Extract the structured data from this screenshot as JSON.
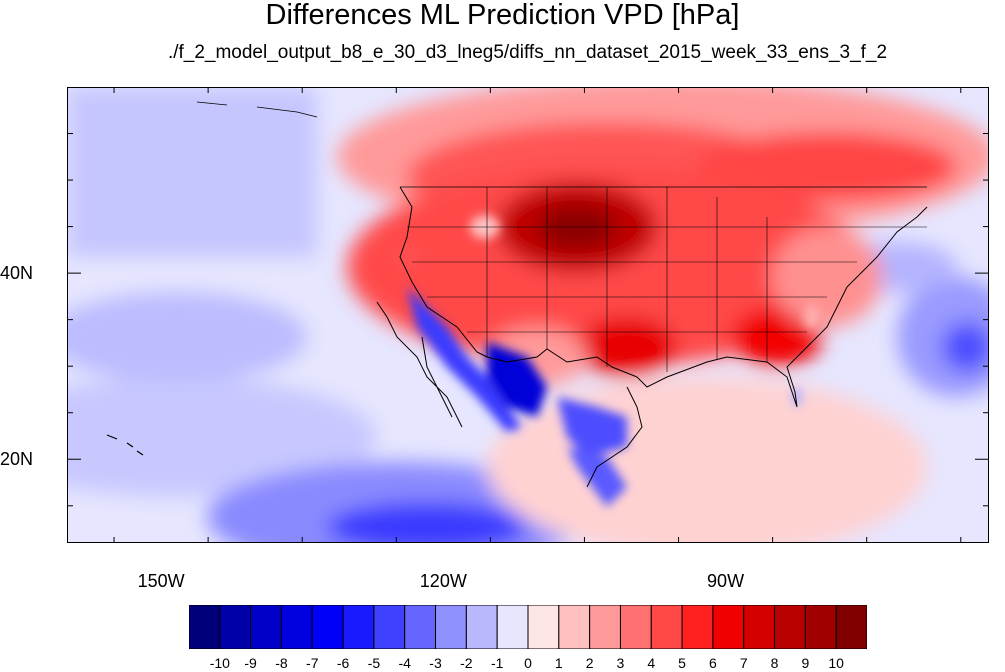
{
  "title": "Differences ML Prediction VPD [hPa]",
  "subtitle": "./f_2_model_output_b8_e_30_d3_lneg5/diffs_nn_dataset_2015_week_33_ens_3_f_2",
  "map": {
    "lon_range": [
      -160,
      -62
    ],
    "lat_range": [
      11,
      60
    ],
    "lat_labels": [
      {
        "lat": 40,
        "label": "40N"
      },
      {
        "lat": 20,
        "label": "20N"
      }
    ],
    "lon_labels": [
      {
        "lon": -150,
        "label": "150W"
      },
      {
        "lon": -120,
        "label": "120W"
      },
      {
        "lon": -90,
        "label": "90W"
      }
    ]
  },
  "colorbar": {
    "labels": [
      "-10",
      "-9",
      "-8",
      "-7",
      "-6",
      "-5",
      "-4",
      "-3",
      "-2",
      "-1",
      "0",
      "1",
      "2",
      "3",
      "4",
      "5",
      "6",
      "7",
      "8",
      "9",
      "10"
    ],
    "colors": [
      "#00007a",
      "#0000a8",
      "#0000c8",
      "#0000e0",
      "#0000f8",
      "#1a1aff",
      "#4040ff",
      "#6666ff",
      "#9090ff",
      "#b8b8ff",
      "#e6e6ff",
      "#ffe6e6",
      "#ffc0c0",
      "#ff9a9a",
      "#ff7070",
      "#ff4848",
      "#ff2020",
      "#f00000",
      "#d40000",
      "#b80000",
      "#a00000",
      "#800000"
    ]
  }
}
